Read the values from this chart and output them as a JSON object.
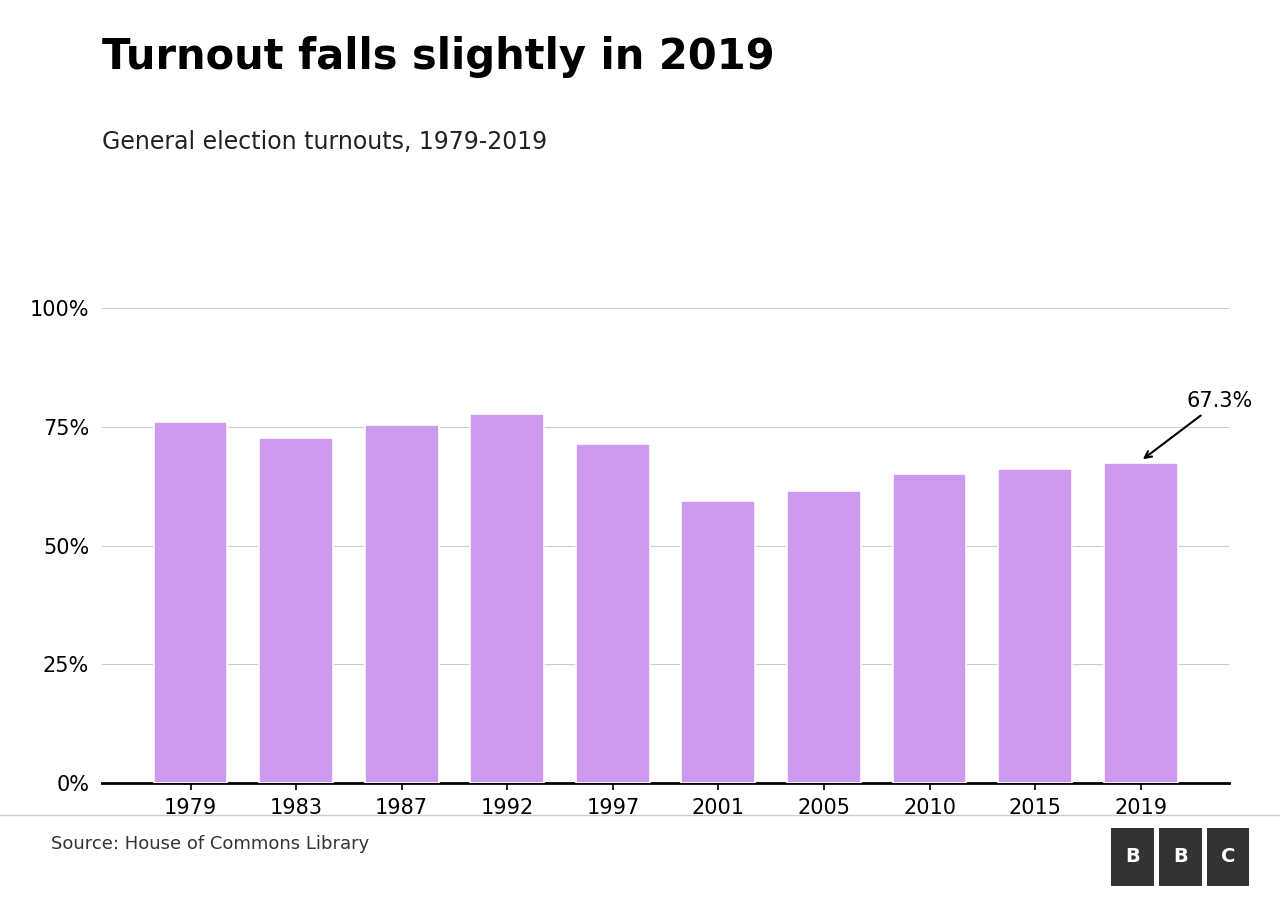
{
  "title": "Turnout falls slightly in 2019",
  "subtitle": "General election turnouts, 1979-2019",
  "source": "Source: House of Commons Library",
  "years": [
    1979,
    1983,
    1987,
    1992,
    1997,
    2001,
    2005,
    2010,
    2015,
    2019
  ],
  "values": [
    76.0,
    72.7,
    75.3,
    77.7,
    71.4,
    59.4,
    61.4,
    65.1,
    66.1,
    67.3
  ],
  "bar_color": "#cc99ee",
  "annotation_year": 2019,
  "annotation_value": 67.3,
  "annotation_text": "67.3%",
  "yticks": [
    0,
    25,
    50,
    75,
    100
  ],
  "ylim": [
    0,
    108
  ],
  "background_color": "#ffffff",
  "title_fontsize": 30,
  "subtitle_fontsize": 17,
  "source_fontsize": 13,
  "tick_fontsize": 15,
  "annotation_fontsize": 15
}
